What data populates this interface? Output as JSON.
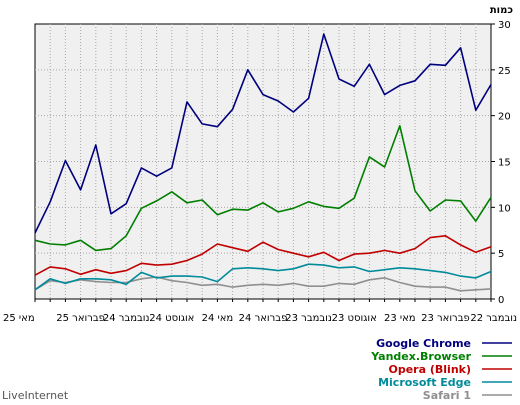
{
  "chart_data": {
    "type": "line",
    "ylabel": "כמות",
    "ylim": [
      0,
      30
    ],
    "yticks": [
      0,
      5,
      10,
      15,
      20,
      25,
      30
    ],
    "grid": true,
    "legend_position": "bottom-right",
    "x": [
      "מאי 25",
      "",
      "",
      "פברואר 25",
      "",
      "",
      "נובמבר 24",
      "",
      "",
      "אוגוסט 24",
      "",
      "",
      "מאי 24",
      "",
      "",
      "פברואר 24",
      "",
      "",
      "נובמבר 23",
      "",
      "",
      "אוגוסט 23",
      "",
      "",
      "מאי 23",
      "",
      "",
      "פברואר 23",
      "",
      "",
      "נובמבר 22"
    ],
    "xticks_shown": [
      "מאי 25",
      "פברואר 25",
      "נובמבר 24",
      "אוגוסט 24",
      "מאי 24",
      "פברואר 24",
      "נובמבר 23",
      "אוגוסט 23",
      "מאי 23",
      "פברואר 23",
      "נובמבר 22"
    ],
    "series": [
      {
        "name": "Google Chrome",
        "color": "#00007f",
        "values": [
          7.2,
          10.6,
          15.1,
          11.9,
          16.8,
          9.3,
          10.4,
          14.3,
          13.4,
          14.3,
          21.5,
          19.1,
          18.8,
          20.7,
          25.0,
          22.3,
          21.6,
          20.4,
          21.9,
          28.9,
          24.0,
          23.2,
          25.6,
          22.3,
          23.3,
          23.8,
          25.6,
          25.5,
          27.4,
          20.6,
          23.4
        ]
      },
      {
        "name": "Yandex.Browser",
        "color": "#007f00",
        "values": [
          6.4,
          6.0,
          5.9,
          6.4,
          5.3,
          5.5,
          6.9,
          9.9,
          10.7,
          11.7,
          10.5,
          10.8,
          9.2,
          9.8,
          9.7,
          10.5,
          9.5,
          9.9,
          10.6,
          10.1,
          9.9,
          11.0,
          15.5,
          14.4,
          18.9,
          11.8,
          9.6,
          10.8,
          10.7,
          8.5,
          11.1
        ]
      },
      {
        "name": "Opera (Blink)",
        "color": "#c00000",
        "values": [
          2.6,
          3.5,
          3.3,
          2.7,
          3.2,
          2.8,
          3.1,
          3.9,
          3.7,
          3.8,
          4.2,
          4.9,
          6.0,
          5.6,
          5.2,
          6.2,
          5.4,
          5.0,
          4.6,
          5.1,
          4.2,
          4.9,
          5.0,
          5.3,
          5.0,
          5.5,
          6.7,
          6.9,
          5.9,
          5.1,
          5.7
        ]
      },
      {
        "name": "Microsoft Edge",
        "color": "#008b9b",
        "values": [
          1.0,
          2.2,
          1.7,
          2.2,
          2.2,
          2.1,
          1.6,
          2.9,
          2.3,
          2.5,
          2.5,
          2.4,
          1.9,
          3.3,
          3.4,
          3.3,
          3.1,
          3.3,
          3.8,
          3.7,
          3.4,
          3.5,
          3.0,
          3.2,
          3.4,
          3.3,
          3.1,
          2.9,
          2.5,
          2.3,
          3.0
        ]
      },
      {
        "name": "Safari 1",
        "color": "#8f8f8f",
        "values": [
          1.0,
          2.0,
          1.8,
          2.1,
          1.9,
          1.8,
          1.8,
          2.2,
          2.4,
          2.0,
          1.8,
          1.5,
          1.6,
          1.3,
          1.5,
          1.6,
          1.5,
          1.7,
          1.4,
          1.4,
          1.7,
          1.6,
          2.1,
          2.3,
          1.8,
          1.4,
          1.3,
          1.3,
          0.9,
          1.0,
          1.1
        ]
      }
    ]
  },
  "watermark": "LiveInternet"
}
